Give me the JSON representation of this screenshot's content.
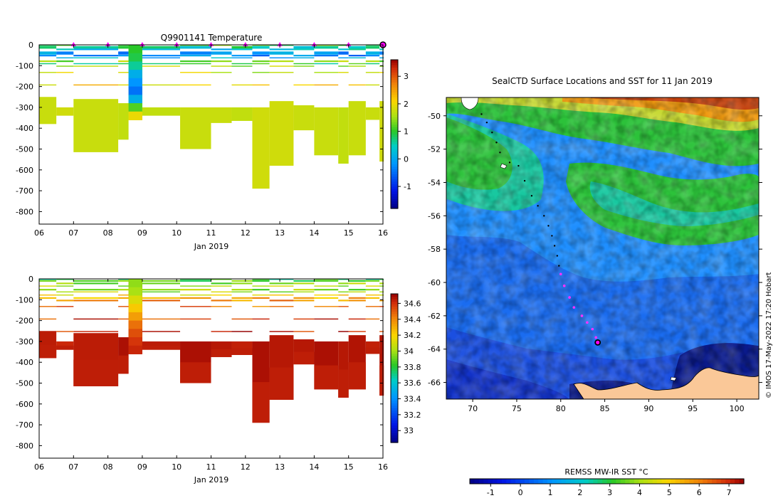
{
  "chart_data": [
    {
      "type": "heatmap",
      "title": "Q9901141  Temperature",
      "xlabel": "Jan 2019",
      "ylabel": "",
      "x_ticks": [
        "06",
        "07",
        "08",
        "09",
        "10",
        "11",
        "12",
        "13",
        "14",
        "15",
        "16"
      ],
      "x_range_days": [
        6,
        16
      ],
      "y_ticks": [
        0,
        -100,
        -200,
        -300,
        -400,
        -500,
        -600,
        -700,
        -800
      ],
      "ylim": [
        -860,
        0
      ],
      "colorbar_ticks": [
        3,
        2,
        1,
        0,
        -1
      ],
      "colorbar_range": [
        -1.8,
        3.6
      ],
      "profile_markers_day": [
        7,
        8,
        9,
        10,
        11,
        12,
        13,
        14,
        15,
        16
      ],
      "profiles": [
        {
          "day": 6.0,
          "deep": [
            250,
            380
          ],
          "deep_value": 1.75
        },
        {
          "day": 6.5,
          "deep": [
            300,
            340
          ],
          "deep_value": 1.8
        },
        {
          "day": 7.0,
          "deep": [
            260,
            515
          ],
          "deep_value": 1.75
        },
        {
          "day": 8.3,
          "deep": [
            280,
            455
          ],
          "deep_value": 1.7
        },
        {
          "day": 8.6,
          "deep": [
            0,
            360
          ],
          "deep_value": 1.75,
          "column": true
        },
        {
          "day": 9.0,
          "deep": [
            300,
            340
          ],
          "deep_value": 1.7
        },
        {
          "day": 10.1,
          "deep": [
            300,
            500
          ],
          "deep_value": 1.75
        },
        {
          "day": 11.0,
          "deep": [
            300,
            375
          ],
          "deep_value": 1.75
        },
        {
          "day": 11.6,
          "deep": [
            300,
            365
          ],
          "deep_value": 1.7
        },
        {
          "day": 12.2,
          "deep": [
            300,
            690
          ],
          "deep_value": 1.8
        },
        {
          "day": 12.7,
          "deep": [
            270,
            580
          ],
          "deep_value": 1.8
        },
        {
          "day": 13.4,
          "deep": [
            290,
            410
          ],
          "deep_value": 1.75
        },
        {
          "day": 14.0,
          "deep": [
            300,
            530
          ],
          "deep_value": 1.75
        },
        {
          "day": 14.7,
          "deep": [
            300,
            570
          ],
          "deep_value": 1.7
        },
        {
          "day": 15.0,
          "deep": [
            270,
            530
          ],
          "deep_value": 1.75
        },
        {
          "day": 15.5,
          "deep": [
            300,
            360
          ],
          "deep_value": 1.75
        },
        {
          "day": 15.9,
          "deep": [
            270,
            560
          ],
          "deep_value": 1.8
        }
      ]
    },
    {
      "type": "heatmap",
      "title": "",
      "xlabel": "Jan 2019",
      "ylabel": "",
      "x_ticks": [
        "06",
        "07",
        "08",
        "09",
        "10",
        "11",
        "12",
        "13",
        "14",
        "15",
        "16"
      ],
      "x_range_days": [
        6,
        16
      ],
      "y_ticks": [
        0,
        -100,
        -200,
        -300,
        -400,
        -500,
        -600,
        -700,
        -800
      ],
      "ylim": [
        -860,
        0
      ],
      "colorbar_ticks": [
        34.6,
        34.4,
        34.2,
        34,
        33.8,
        33.6,
        33.4,
        33.2,
        33
      ],
      "colorbar_range": [
        32.85,
        34.72
      ],
      "profiles": [
        {
          "day": 6.0,
          "deep": [
            250,
            380
          ],
          "deep_value": 34.65
        },
        {
          "day": 6.5,
          "deep": [
            300,
            340
          ],
          "deep_value": 34.62
        },
        {
          "day": 7.0,
          "deep": [
            260,
            515
          ],
          "deep_value": 34.65
        },
        {
          "day": 8.3,
          "deep": [
            280,
            455
          ],
          "deep_value": 34.68
        },
        {
          "day": 8.6,
          "deep": [
            0,
            360
          ],
          "deep_value": 34.6,
          "column": true
        },
        {
          "day": 9.0,
          "deep": [
            300,
            340
          ],
          "deep_value": 34.65
        },
        {
          "day": 10.1,
          "deep": [
            300,
            500
          ],
          "deep_value": 34.68
        },
        {
          "day": 11.0,
          "deep": [
            300,
            375
          ],
          "deep_value": 34.66
        },
        {
          "day": 11.6,
          "deep": [
            300,
            365
          ],
          "deep_value": 34.64
        },
        {
          "day": 12.2,
          "deep": [
            300,
            690
          ],
          "deep_value": 34.68
        },
        {
          "day": 12.7,
          "deep": [
            270,
            580
          ],
          "deep_value": 34.66
        },
        {
          "day": 13.4,
          "deep": [
            290,
            410
          ],
          "deep_value": 34.66
        },
        {
          "day": 14.0,
          "deep": [
            300,
            530
          ],
          "deep_value": 34.68
        },
        {
          "day": 14.7,
          "deep": [
            300,
            570
          ],
          "deep_value": 34.66
        },
        {
          "day": 15.0,
          "deep": [
            270,
            530
          ],
          "deep_value": 34.67
        },
        {
          "day": 15.5,
          "deep": [
            300,
            360
          ],
          "deep_value": 34.64
        },
        {
          "day": 15.9,
          "deep": [
            270,
            560
          ],
          "deep_value": 34.67
        }
      ]
    },
    {
      "type": "heatmap",
      "title": "SealCTD Surface Locations and SST for 11 Jan 2019",
      "xlabel": "",
      "ylabel": "",
      "x_ticks": [
        70,
        75,
        80,
        85,
        90,
        95,
        100
      ],
      "xlim": [
        67,
        102.5
      ],
      "y_ticks": [
        -50,
        -52,
        -54,
        -56,
        -58,
        -60,
        -62,
        -64,
        -66
      ],
      "ylim": [
        -67,
        -48.9
      ],
      "colorbar_label": "REMSS MW-IR SST °C",
      "colorbar_ticks": [
        -1,
        0,
        1,
        2,
        3,
        4,
        5,
        6,
        7
      ],
      "colorbar_range": [
        -1.7,
        7.5
      ],
      "track": [
        [
          71.0,
          -49.9
        ],
        [
          71.6,
          -50.4
        ],
        [
          72.2,
          -51.0
        ],
        [
          72.7,
          -51.6
        ],
        [
          73.1,
          -52.2
        ],
        [
          74.2,
          -52.8
        ],
        [
          75.2,
          -53.0
        ],
        [
          75.9,
          -53.9
        ],
        [
          76.7,
          -54.8
        ],
        [
          77.4,
          -55.4
        ],
        [
          78.1,
          -56.0
        ],
        [
          78.6,
          -56.6
        ],
        [
          79.0,
          -57.2
        ],
        [
          79.3,
          -57.8
        ],
        [
          79.6,
          -58.4
        ],
        [
          79.8,
          -59.0
        ],
        [
          80.0,
          -59.5
        ],
        [
          80.4,
          -60.2
        ],
        [
          81.0,
          -60.9
        ],
        [
          81.5,
          -61.5
        ],
        [
          82.4,
          -62.0
        ],
        [
          83.0,
          -62.4
        ],
        [
          83.6,
          -62.8
        ],
        [
          84.0,
          -63.3
        ],
        [
          84.2,
          -63.6
        ]
      ],
      "current_position": [
        84.2,
        -63.6
      ],
      "credit": "© IMOS 17-May-2022 17:20 Hobart"
    }
  ]
}
